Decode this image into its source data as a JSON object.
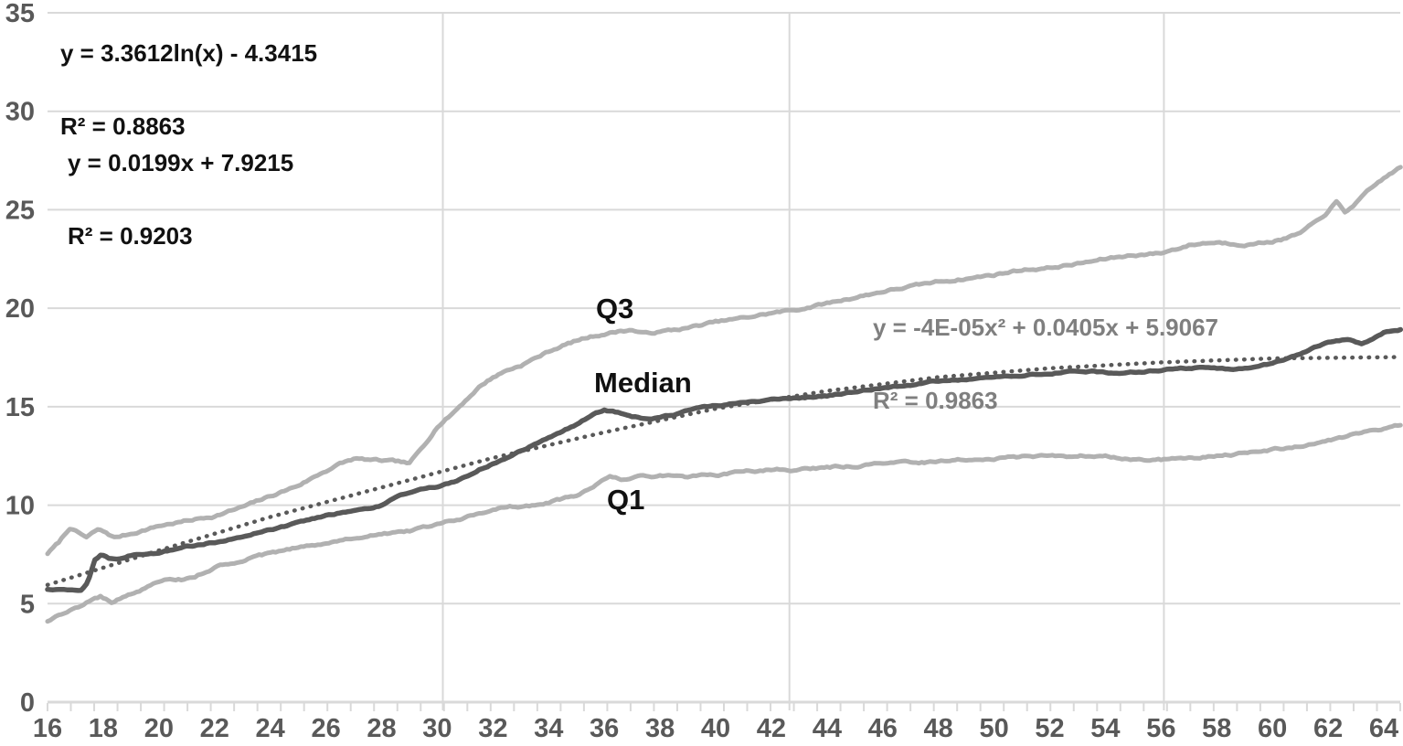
{
  "chart": {
    "background": "#ffffff",
    "grid_color": "#d9d9d9",
    "axis_label_color": "#595959",
    "equations": {
      "log": {
        "line1": "y = 3.3612ln(x) - 4.3415",
        "line2": "R² = 0.8863"
      },
      "linear": {
        "line1": "y = 0.0199x + 7.9215",
        "line2": "R² = 0.9203"
      },
      "poly": {
        "line1": "y = -4E-05x² + 0.0405x + 5.9067",
        "line2": "R² = 0.9863"
      }
    },
    "series_labels": {
      "q3": "Q3",
      "median": "Median",
      "q1": "Q1"
    }
  },
  "chart_data": {
    "type": "line",
    "title": "",
    "xlabel": "",
    "ylabel": "",
    "x_axis": {
      "min": 16,
      "max": 64.6,
      "tick_labels": [
        16,
        18,
        20,
        22,
        24,
        26,
        28,
        30,
        32,
        34,
        36,
        38,
        40,
        42,
        44,
        46,
        48,
        50,
        52,
        54,
        56,
        58,
        60,
        62,
        64
      ],
      "vertical_gridlines_at": [
        30.2,
        42.65,
        56.1
      ],
      "minor_tick_count": 59
    },
    "y_axis": {
      "min": 0,
      "max": 35,
      "tick_labels": [
        0,
        5,
        10,
        15,
        20,
        25,
        30,
        35
      ]
    },
    "grid": true,
    "legend_position": "none",
    "series": [
      {
        "name": "Q3",
        "color": "#b1b1b1",
        "width": 5,
        "style": "solid",
        "noise_amp": 0.16,
        "points": [
          [
            16,
            7.55
          ],
          [
            16.4,
            8.1
          ],
          [
            16.8,
            8.85
          ],
          [
            17.1,
            8.6
          ],
          [
            17.4,
            8.35
          ],
          [
            17.8,
            8.75
          ],
          [
            18.1,
            8.6
          ],
          [
            18.4,
            8.35
          ],
          [
            19,
            8.55
          ],
          [
            19.5,
            8.75
          ],
          [
            20,
            8.95
          ],
          [
            21,
            9.2
          ],
          [
            22,
            9.45
          ],
          [
            23,
            9.9
          ],
          [
            24,
            10.45
          ],
          [
            25,
            11.0
          ],
          [
            26,
            11.75
          ],
          [
            26.5,
            12.1
          ],
          [
            27,
            12.35
          ],
          [
            27.5,
            12.3
          ],
          [
            28,
            12.25
          ],
          [
            28.6,
            12.2
          ],
          [
            29,
            12.1
          ],
          [
            29.5,
            13.0
          ],
          [
            30,
            14.0
          ],
          [
            30.5,
            14.6
          ],
          [
            31,
            15.3
          ],
          [
            31.5,
            16.0
          ],
          [
            32,
            16.5
          ],
          [
            32.5,
            16.85
          ],
          [
            33,
            17.1
          ],
          [
            33.5,
            17.45
          ],
          [
            34,
            17.8
          ],
          [
            34.5,
            18.1
          ],
          [
            35,
            18.35
          ],
          [
            35.5,
            18.55
          ],
          [
            36,
            18.7
          ],
          [
            36.6,
            18.85
          ],
          [
            37,
            18.9
          ],
          [
            37.4,
            18.72
          ],
          [
            38,
            18.8
          ],
          [
            39,
            19.0
          ],
          [
            40,
            19.3
          ],
          [
            41,
            19.5
          ],
          [
            42,
            19.75
          ],
          [
            43,
            19.95
          ],
          [
            44,
            20.25
          ],
          [
            45,
            20.55
          ],
          [
            46,
            20.85
          ],
          [
            47,
            21.1
          ],
          [
            48,
            21.35
          ],
          [
            49,
            21.5
          ],
          [
            50,
            21.7
          ],
          [
            51,
            21.95
          ],
          [
            52,
            22.05
          ],
          [
            53,
            22.25
          ],
          [
            54,
            22.5
          ],
          [
            55,
            22.7
          ],
          [
            56,
            22.8
          ],
          [
            56.5,
            23.0
          ],
          [
            57,
            23.2
          ],
          [
            57.5,
            23.3
          ],
          [
            58,
            23.35
          ],
          [
            58.6,
            23.28
          ],
          [
            59.2,
            23.25
          ],
          [
            60,
            23.4
          ],
          [
            60.5,
            23.55
          ],
          [
            61,
            23.8
          ],
          [
            61.5,
            24.3
          ],
          [
            62,
            24.9
          ],
          [
            62.3,
            25.4
          ],
          [
            62.6,
            24.85
          ],
          [
            63,
            25.35
          ],
          [
            63.5,
            26.0
          ],
          [
            64,
            26.6
          ],
          [
            64.6,
            27.15
          ]
        ]
      },
      {
        "name": "Q1",
        "color": "#b1b1b1",
        "width": 5,
        "style": "solid",
        "noise_amp": 0.16,
        "points": [
          [
            16,
            4.1
          ],
          [
            16.5,
            4.45
          ],
          [
            17,
            4.75
          ],
          [
            17.5,
            5.1
          ],
          [
            17.9,
            5.35
          ],
          [
            18.3,
            5.05
          ],
          [
            18.7,
            5.3
          ],
          [
            19,
            5.45
          ],
          [
            19.5,
            5.75
          ],
          [
            20,
            6.1
          ],
          [
            20.4,
            6.3
          ],
          [
            20.8,
            6.25
          ],
          [
            21.3,
            6.4
          ],
          [
            22,
            6.85
          ],
          [
            22.5,
            7.0
          ],
          [
            23,
            7.2
          ],
          [
            24,
            7.55
          ],
          [
            25,
            7.85
          ],
          [
            26,
            8.1
          ],
          [
            27,
            8.35
          ],
          [
            28,
            8.5
          ],
          [
            29,
            8.7
          ],
          [
            30,
            9.0
          ],
          [
            31,
            9.4
          ],
          [
            32,
            9.8
          ],
          [
            32.6,
            10.0
          ],
          [
            33.1,
            9.92
          ],
          [
            34,
            10.1
          ],
          [
            35,
            10.5
          ],
          [
            35.6,
            10.85
          ],
          [
            36.2,
            11.5
          ],
          [
            36.7,
            11.3
          ],
          [
            37.2,
            11.42
          ],
          [
            38,
            11.5
          ],
          [
            39,
            11.45
          ],
          [
            40,
            11.55
          ],
          [
            41,
            11.7
          ],
          [
            42,
            11.8
          ],
          [
            43,
            11.8
          ],
          [
            44,
            11.9
          ],
          [
            45,
            12.0
          ],
          [
            46,
            12.1
          ],
          [
            47,
            12.15
          ],
          [
            48,
            12.2
          ],
          [
            49,
            12.3
          ],
          [
            50,
            12.35
          ],
          [
            51,
            12.45
          ],
          [
            52,
            12.5
          ],
          [
            52.6,
            12.45
          ],
          [
            53.2,
            12.52
          ],
          [
            54,
            12.5
          ],
          [
            54.6,
            12.38
          ],
          [
            55.2,
            12.28
          ],
          [
            55.8,
            12.27
          ],
          [
            56.5,
            12.35
          ],
          [
            57.5,
            12.45
          ],
          [
            58.5,
            12.55
          ],
          [
            59.5,
            12.7
          ],
          [
            60.5,
            12.9
          ],
          [
            61.5,
            13.1
          ],
          [
            62.5,
            13.45
          ],
          [
            63.5,
            13.8
          ],
          [
            64.6,
            14.05
          ]
        ]
      },
      {
        "name": "Poly. (Median)",
        "color": "#595959",
        "width": 4.5,
        "style": "dotted",
        "noise_amp": 0,
        "points": [
          [
            16,
            5.95
          ],
          [
            20,
            7.7
          ],
          [
            24,
            9.4
          ],
          [
            28,
            10.9
          ],
          [
            32,
            12.4
          ],
          [
            36,
            13.7
          ],
          [
            40,
            14.9
          ],
          [
            44,
            15.8
          ],
          [
            48,
            16.5
          ],
          [
            52,
            16.95
          ],
          [
            56,
            17.25
          ],
          [
            60,
            17.45
          ],
          [
            64.6,
            17.52
          ]
        ]
      },
      {
        "name": "Median",
        "color": "#595959",
        "width": 5.5,
        "style": "solid",
        "noise_amp": 0.1,
        "points": [
          [
            16,
            5.75
          ],
          [
            16.6,
            5.7
          ],
          [
            17.2,
            5.72
          ],
          [
            17.45,
            6.1
          ],
          [
            17.7,
            7.2
          ],
          [
            17.95,
            7.5
          ],
          [
            18.2,
            7.32
          ],
          [
            18.6,
            7.3
          ],
          [
            19,
            7.45
          ],
          [
            19.5,
            7.5
          ],
          [
            20,
            7.6
          ],
          [
            20.5,
            7.75
          ],
          [
            21,
            7.9
          ],
          [
            22,
            8.1
          ],
          [
            23,
            8.4
          ],
          [
            24,
            8.75
          ],
          [
            25,
            9.1
          ],
          [
            26,
            9.45
          ],
          [
            27,
            9.75
          ],
          [
            27.5,
            9.85
          ],
          [
            28,
            10.0
          ],
          [
            28.7,
            10.55
          ],
          [
            29.4,
            10.85
          ],
          [
            30,
            10.95
          ],
          [
            30.6,
            11.2
          ],
          [
            31,
            11.4
          ],
          [
            31.5,
            11.8
          ],
          [
            32,
            12.1
          ],
          [
            33,
            12.75
          ],
          [
            34,
            13.4
          ],
          [
            35,
            14.1
          ],
          [
            35.6,
            14.6
          ],
          [
            36,
            14.85
          ],
          [
            36.5,
            14.7
          ],
          [
            37,
            14.45
          ],
          [
            37.6,
            14.4
          ],
          [
            38,
            14.45
          ],
          [
            38.5,
            14.6
          ],
          [
            39,
            14.8
          ],
          [
            39.5,
            14.95
          ],
          [
            40,
            15.05
          ],
          [
            41,
            15.2
          ],
          [
            42,
            15.35
          ],
          [
            43,
            15.45
          ],
          [
            44,
            15.55
          ],
          [
            45,
            15.75
          ],
          [
            46,
            15.95
          ],
          [
            47,
            16.1
          ],
          [
            48,
            16.3
          ],
          [
            49,
            16.4
          ],
          [
            50,
            16.5
          ],
          [
            51,
            16.6
          ],
          [
            52,
            16.7
          ],
          [
            53,
            16.8
          ],
          [
            53.6,
            16.8
          ],
          [
            54.2,
            16.72
          ],
          [
            55,
            16.75
          ],
          [
            56,
            16.85
          ],
          [
            57,
            16.95
          ],
          [
            57.6,
            17.0
          ],
          [
            58.3,
            16.9
          ],
          [
            59,
            16.95
          ],
          [
            60,
            17.2
          ],
          [
            61,
            17.7
          ],
          [
            61.6,
            18.05
          ],
          [
            62,
            18.25
          ],
          [
            62.7,
            18.4
          ],
          [
            63.2,
            18.2
          ],
          [
            63.6,
            18.45
          ],
          [
            64,
            18.75
          ],
          [
            64.6,
            18.9
          ]
        ]
      }
    ]
  }
}
